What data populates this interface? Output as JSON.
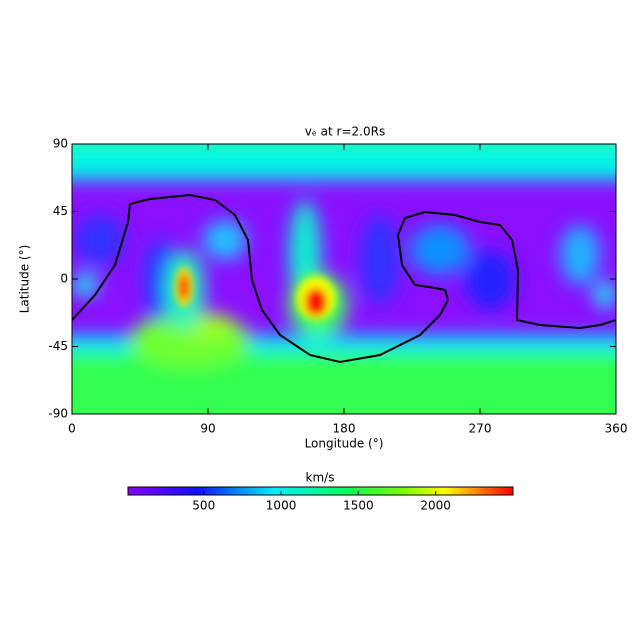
{
  "chart_data": {
    "type": "heatmap",
    "title": "vₑ at r=2.0Rs",
    "xlabel": "Longitude (°)",
    "ylabel": "Latitude (°)",
    "xlim": [
      0,
      360
    ],
    "xticks": [
      0,
      90,
      180,
      270,
      360
    ],
    "ylim": [
      -90,
      90
    ],
    "yticks": [
      -90,
      -45,
      0,
      45,
      90
    ],
    "colorbar": {
      "label": "km/s",
      "lim": [
        10,
        2500
      ],
      "ticks": [
        500,
        1000,
        1500,
        2000
      ]
    }
  }
}
